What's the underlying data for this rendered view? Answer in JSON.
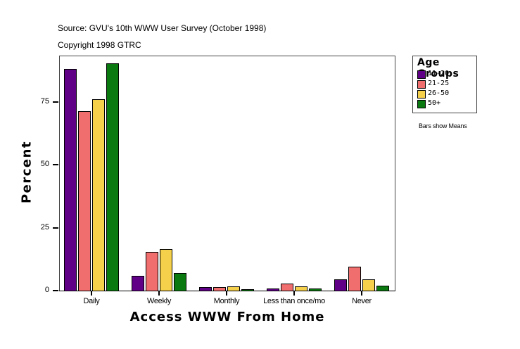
{
  "header": {
    "source": "Source: GVU's 10th WWW User Survey (October 1998)",
    "copyright": "Copyright 1998 GTRC"
  },
  "legend": {
    "title": "Age Groups",
    "items": [
      {
        "label": "11-20",
        "color": "#5f0087"
      },
      {
        "label": "21-25",
        "color": "#f06e6e"
      },
      {
        "label": "26-50",
        "color": "#f5d04a"
      },
      {
        "label": "50+",
        "color": "#0a7a10"
      }
    ]
  },
  "note": "Bars show Means",
  "chart_data": {
    "type": "bar",
    "title": "",
    "xlabel": "Access WWW From Home",
    "ylabel": "Percent",
    "categories": [
      "Daily",
      "Weekly",
      "Monthly",
      "Less than once/mo",
      "Never"
    ],
    "series": [
      {
        "name": "11-20",
        "color": "#5f0087",
        "values": [
          88.2,
          5.9,
          1.3,
          0.8,
          4.5
        ]
      },
      {
        "name": "21-25",
        "color": "#f06e6e",
        "values": [
          71.4,
          15.4,
          1.3,
          2.8,
          9.5
        ]
      },
      {
        "name": "26-50",
        "color": "#f5d04a",
        "values": [
          76.1,
          16.5,
          1.6,
          1.6,
          4.4
        ]
      },
      {
        "name": "50+",
        "color": "#0a7a10",
        "values": [
          90.4,
          7.0,
          0.5,
          0.8,
          1.9
        ]
      }
    ],
    "ylim": [
      0,
      93.8
    ],
    "yticks": [
      0,
      25,
      50,
      75
    ],
    "grid": false,
    "legend_position": "right",
    "annotations": [
      "Bars show Means"
    ]
  }
}
